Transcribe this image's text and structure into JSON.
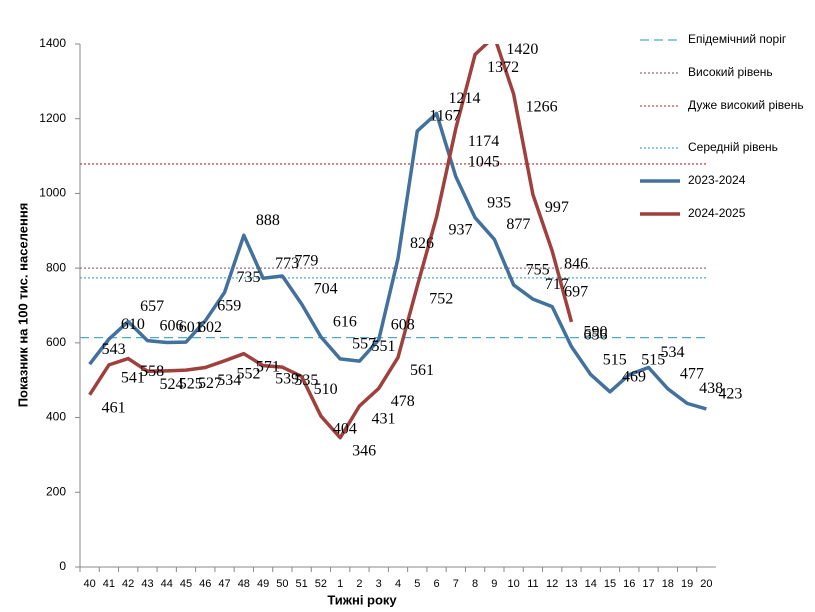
{
  "chart_data": {
    "type": "line",
    "xlabel": "Тижні року",
    "ylabel": "Показник на 100 тис. населення",
    "categories": [
      "40",
      "41",
      "42",
      "43",
      "44",
      "45",
      "46",
      "47",
      "48",
      "49",
      "50",
      "51",
      "52",
      "1",
      "2",
      "3",
      "4",
      "5",
      "6",
      "7",
      "8",
      "9",
      "10",
      "11",
      "12",
      "13",
      "14",
      "15",
      "16",
      "17",
      "18",
      "19",
      "20"
    ],
    "series": [
      {
        "name": "2023-2024",
        "color": "#41719c",
        "values": [
          543,
          610,
          657,
          606,
          601,
          602,
          659,
          735,
          888,
          773,
          779,
          704,
          616,
          557,
          551,
          608,
          826,
          1167,
          1214,
          1045,
          935,
          877,
          755,
          717,
          697,
          590,
          515,
          469,
          515,
          534,
          477,
          438,
          423
        ]
      },
      {
        "name": "2024-2025",
        "color": "#a0403c",
        "values": [
          461,
          541,
          558,
          524,
          525,
          527,
          534,
          552,
          571,
          539,
          535,
          510,
          404,
          346,
          431,
          478,
          561,
          752,
          937,
          1174,
          1372,
          1420,
          1266,
          997,
          846,
          656,
          null,
          null,
          null,
          null,
          null,
          null,
          null
        ]
      }
    ],
    "reference_lines": [
      {
        "name": "Епідемічний поріг",
        "value": 614,
        "color": "#4bacc6",
        "style": "dashed"
      },
      {
        "name": "Високий рівень",
        "value": 800,
        "color": "#9b6a8e",
        "style": "dotted"
      },
      {
        "name": "Дуже високий рівень",
        "value": 1079,
        "color": "#c0504d",
        "style": "dotted"
      },
      {
        "name": "Середній рівень",
        "value": 774,
        "color": "#4bacc6",
        "style": "dotted"
      }
    ],
    "ylim": [
      0,
      1400
    ],
    "yticks": [
      0,
      200,
      400,
      600,
      800,
      1000,
      1200,
      1400
    ],
    "grid": false
  }
}
